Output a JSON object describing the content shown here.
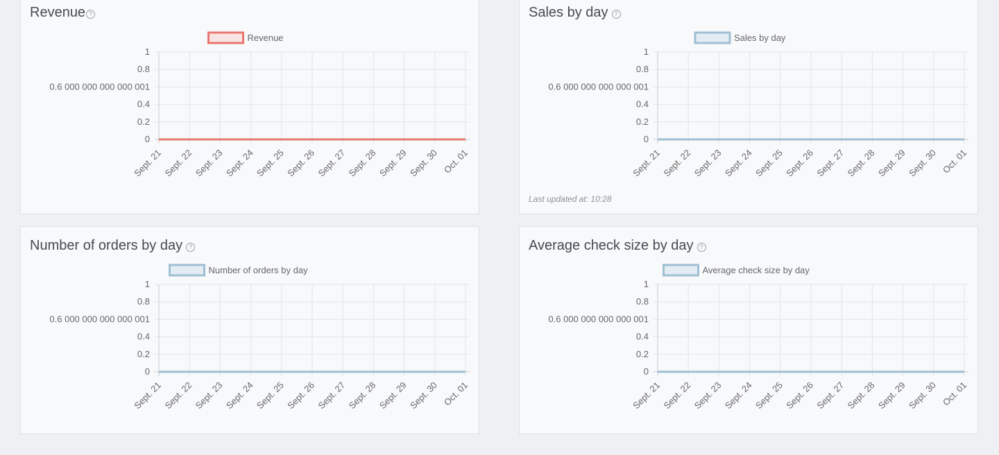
{
  "panels": [
    {
      "title": "Revenue",
      "help_icon": "question-circle-icon",
      "updated": "",
      "chart_data": {
        "type": "line",
        "categories": [
          "Sept. 21",
          "Sept. 22",
          "Sept. 23",
          "Sept. 24",
          "Sept. 25",
          "Sept. 26",
          "Sept. 27",
          "Sept. 28",
          "Sept. 29",
          "Sept. 30",
          "Oct. 01"
        ],
        "series": [
          {
            "name": "Revenue",
            "values": [
              0,
              0,
              0,
              0,
              0,
              0,
              0,
              0,
              0,
              0,
              0
            ]
          }
        ],
        "yticks": [
          "0",
          "0.2",
          "0.4",
          "0.6 000 000 000 000 001",
          "0.8",
          "1"
        ],
        "ylim": [
          0,
          1
        ],
        "grid": true,
        "legend": "top",
        "color": "#e8776f",
        "fill": "#f8e4e2"
      }
    },
    {
      "title": "Sales by day",
      "help_icon": "question-circle-icon",
      "updated": "Last updated at: 10:28",
      "chart_data": {
        "type": "line",
        "categories": [
          "Sept. 21",
          "Sept. 22",
          "Sept. 23",
          "Sept. 24",
          "Sept. 25",
          "Sept. 26",
          "Sept. 27",
          "Sept. 28",
          "Sept. 29",
          "Sept. 30",
          "Oct. 01"
        ],
        "series": [
          {
            "name": "Sales by day",
            "values": [
              0,
              0,
              0,
              0,
              0,
              0,
              0,
              0,
              0,
              0,
              0
            ]
          }
        ],
        "yticks": [
          "0",
          "0.2",
          "0.4",
          "0.6 000 000 000 000 001",
          "0.8",
          "1"
        ],
        "ylim": [
          0,
          1
        ],
        "grid": true,
        "legend": "top",
        "color": "#9fbfd2",
        "fill": "#e4ecf3"
      }
    },
    {
      "title": "Number of orders by day",
      "help_icon": "question-circle-icon",
      "updated": "",
      "chart_data": {
        "type": "line",
        "categories": [
          "Sept. 21",
          "Sept. 22",
          "Sept. 23",
          "Sept. 24",
          "Sept. 25",
          "Sept. 26",
          "Sept. 27",
          "Sept. 28",
          "Sept. 29",
          "Sept. 30",
          "Oct. 01"
        ],
        "series": [
          {
            "name": "Number of orders by day",
            "values": [
              0,
              0,
              0,
              0,
              0,
              0,
              0,
              0,
              0,
              0,
              0
            ]
          }
        ],
        "yticks": [
          "0",
          "0.2",
          "0.4",
          "0.6 000 000 000 000 001",
          "0.8",
          "1"
        ],
        "ylim": [
          0,
          1
        ],
        "grid": true,
        "legend": "top",
        "color": "#9fbfd2",
        "fill": "#e4ecf3"
      }
    },
    {
      "title": "Average check size by day",
      "help_icon": "question-circle-icon",
      "updated": "",
      "chart_data": {
        "type": "line",
        "categories": [
          "Sept. 21",
          "Sept. 22",
          "Sept. 23",
          "Sept. 24",
          "Sept. 25",
          "Sept. 26",
          "Sept. 27",
          "Sept. 28",
          "Sept. 29",
          "Sept. 30",
          "Oct. 01"
        ],
        "series": [
          {
            "name": "Average check size by day",
            "values": [
              0,
              0,
              0,
              0,
              0,
              0,
              0,
              0,
              0,
              0,
              0
            ]
          }
        ],
        "yticks": [
          "0",
          "0.2",
          "0.4",
          "0.6 000 000 000 000 001",
          "0.8",
          "1"
        ],
        "ylim": [
          0,
          1
        ],
        "grid": true,
        "legend": "top",
        "color": "#9fbfd2",
        "fill": "#e4ecf3"
      }
    }
  ]
}
